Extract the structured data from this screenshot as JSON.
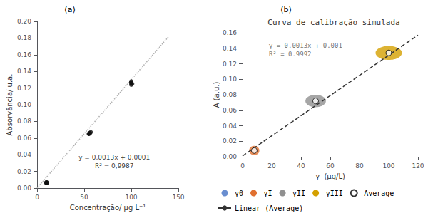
{
  "chart_data": [
    {
      "type": "scatter",
      "panel_label": "(a)",
      "xlabel": "Concentração/ μg L⁻¹",
      "ylabel": "Absorvância/ u.a.",
      "xlim": [
        0,
        150
      ],
      "ylim": [
        0,
        0.2
      ],
      "xticks": [
        0,
        50,
        100,
        150
      ],
      "yticks": [
        {
          "value": 0,
          "label": "0.00"
        },
        {
          "value": 0.02,
          "label": "0.02"
        },
        {
          "value": 0.04,
          "label": "0.04"
        },
        {
          "value": 0.06,
          "label": "0.06"
        },
        {
          "value": 0.08,
          "label": "0.08"
        },
        {
          "value": 0.1,
          "label": "0.10"
        },
        {
          "value": 0.12,
          "label": "0.12"
        },
        {
          "value": 0.14,
          "label": "0.14"
        },
        {
          "value": 0.16,
          "label": "0.16"
        },
        {
          "value": 0.18,
          "label": "0.18"
        },
        {
          "value": 0.2,
          "label": "0.20"
        }
      ],
      "grid": false,
      "series": [
        {
          "type": "scatter",
          "color": "#111111",
          "marker": "circle",
          "x": [
            10,
            10,
            10,
            10,
            10,
            55,
            57,
            56,
            55,
            56,
            100,
            100,
            101,
            100,
            100
          ],
          "y": [
            0.006,
            0.007,
            0.007,
            0.006,
            0.006,
            0.065,
            0.067,
            0.066,
            0.065,
            0.066,
            0.127,
            0.128,
            0.125,
            0.124,
            0.126
          ]
        },
        {
          "type": "line",
          "color": "#b0b0b0",
          "line_style": "dotted",
          "x": [
            0,
            140
          ],
          "y": [
            0.0001,
            0.1821
          ]
        }
      ],
      "annotations": [
        {
          "text": [
            "y = 0,0013x + 0,0001",
            "R² = 0,9987"
          ],
          "x": 82,
          "y": 0.032
        }
      ]
    },
    {
      "type": "scatter",
      "panel_label": "(b)",
      "title": "Curva de calibração simulada",
      "xlabel": "γ  (μg/L)",
      "ylabel": "A (a.u.)",
      "xlim": [
        0,
        120
      ],
      "ylim": [
        0,
        0.16
      ],
      "xticks": [
        0,
        20,
        40,
        60,
        80,
        100,
        120
      ],
      "yticks": [
        {
          "value": 0,
          "label": "0.00"
        },
        {
          "value": 0.02,
          "label": "0.02"
        },
        {
          "value": 0.04,
          "label": "0.04"
        },
        {
          "value": 0.06,
          "label": "0.06"
        },
        {
          "value": 0.08,
          "label": "0.08"
        },
        {
          "value": 0.1,
          "label": "0.10"
        },
        {
          "value": 0.12,
          "label": "0.12"
        },
        {
          "value": 0.14,
          "label": "0.14"
        },
        {
          "value": 0.16,
          "label": "0.16"
        }
      ],
      "grid": false,
      "legend": "bottom",
      "series": [
        {
          "name": "γ0",
          "type": "scatter",
          "color": "#4472c4",
          "marker": "circle",
          "x": [],
          "y": []
        },
        {
          "name": "γI",
          "type": "ellipse",
          "color": "#e07030",
          "x": [
            8
          ],
          "y": [
            0.008
          ],
          "width": [
            7
          ],
          "height": [
            0.012
          ]
        },
        {
          "name": "γII",
          "type": "ellipse",
          "color": "#909090",
          "x": [
            50
          ],
          "y": [
            0.072
          ],
          "width": [
            14
          ],
          "height": [
            0.016
          ]
        },
        {
          "name": "γIII",
          "type": "ellipse",
          "color": "#d4a000",
          "x": [
            100
          ],
          "y": [
            0.134
          ],
          "width": [
            18
          ],
          "height": [
            0.018
          ]
        },
        {
          "name": "Average",
          "type": "scatter",
          "color": "#000000",
          "marker": "open_circle",
          "x": [
            8,
            50,
            100
          ],
          "y": [
            0.008,
            0.072,
            0.134
          ]
        },
        {
          "name": "Linear (Average)",
          "type": "line",
          "color": "#333333",
          "line_style": "dashed",
          "x": [
            0,
            120
          ],
          "y": [
            0.001,
            0.157
          ]
        }
      ],
      "annotations": [
        {
          "text": [
            "γ = 0.0013x + 0.001",
            "R² = 0.9992"
          ],
          "x": 18,
          "y": 0.149
        }
      ]
    }
  ]
}
